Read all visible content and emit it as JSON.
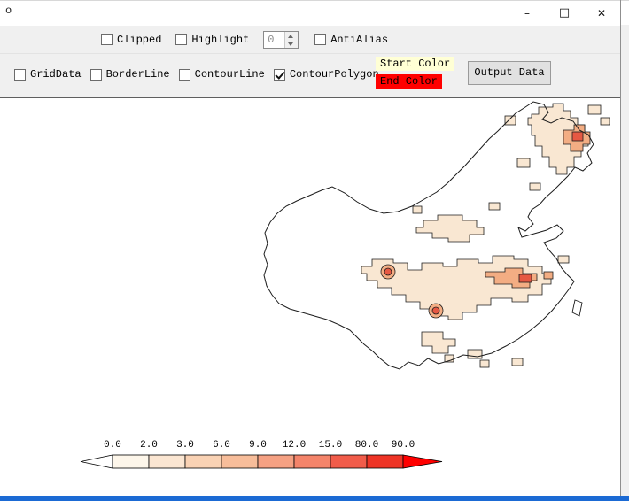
{
  "window": {
    "icon": "o",
    "controls": {
      "minimize": "–",
      "maximize": "□",
      "close": "✕"
    }
  },
  "toolbar1": {
    "clipped": {
      "label": "Clipped",
      "checked": false
    },
    "highlight": {
      "label": "Highlight",
      "checked": false
    },
    "spinner": {
      "value": "0"
    },
    "antialias": {
      "label": "AntiAlias",
      "checked": false
    }
  },
  "toolbar2": {
    "griddata": {
      "label": "GridData",
      "checked": false
    },
    "borderline": {
      "label": "BorderLine",
      "checked": false
    },
    "contourline": {
      "label": "ContourLine",
      "checked": false
    },
    "contourpolygon": {
      "label": "ContourPolygon",
      "checked": true
    },
    "start_color": {
      "label": "Start Color",
      "bg": "#ffffd5"
    },
    "end_color": {
      "label": "End Color",
      "bg": "#ff0000"
    },
    "output_button": "Output Data"
  },
  "legend": {
    "ticks": [
      "0.0",
      "2.0",
      "3.0",
      "6.0",
      "9.0",
      "12.0",
      "15.0",
      "80.0",
      "90.0"
    ],
    "segment_colors": [
      "#fdf6ea",
      "#fbe6d2",
      "#f9d2b4",
      "#f7bd9a",
      "#f5a183",
      "#f4846a",
      "#f15c4a",
      "#ee3426"
    ],
    "tip_left_color": "#ffffff",
    "tip_right_color": "#ff0000"
  },
  "map": {
    "level_colors": {
      "low": "#f9e7d2",
      "mid": "#f3ad83",
      "high": "#e65843"
    },
    "outline_color": "#1c1c1c"
  }
}
